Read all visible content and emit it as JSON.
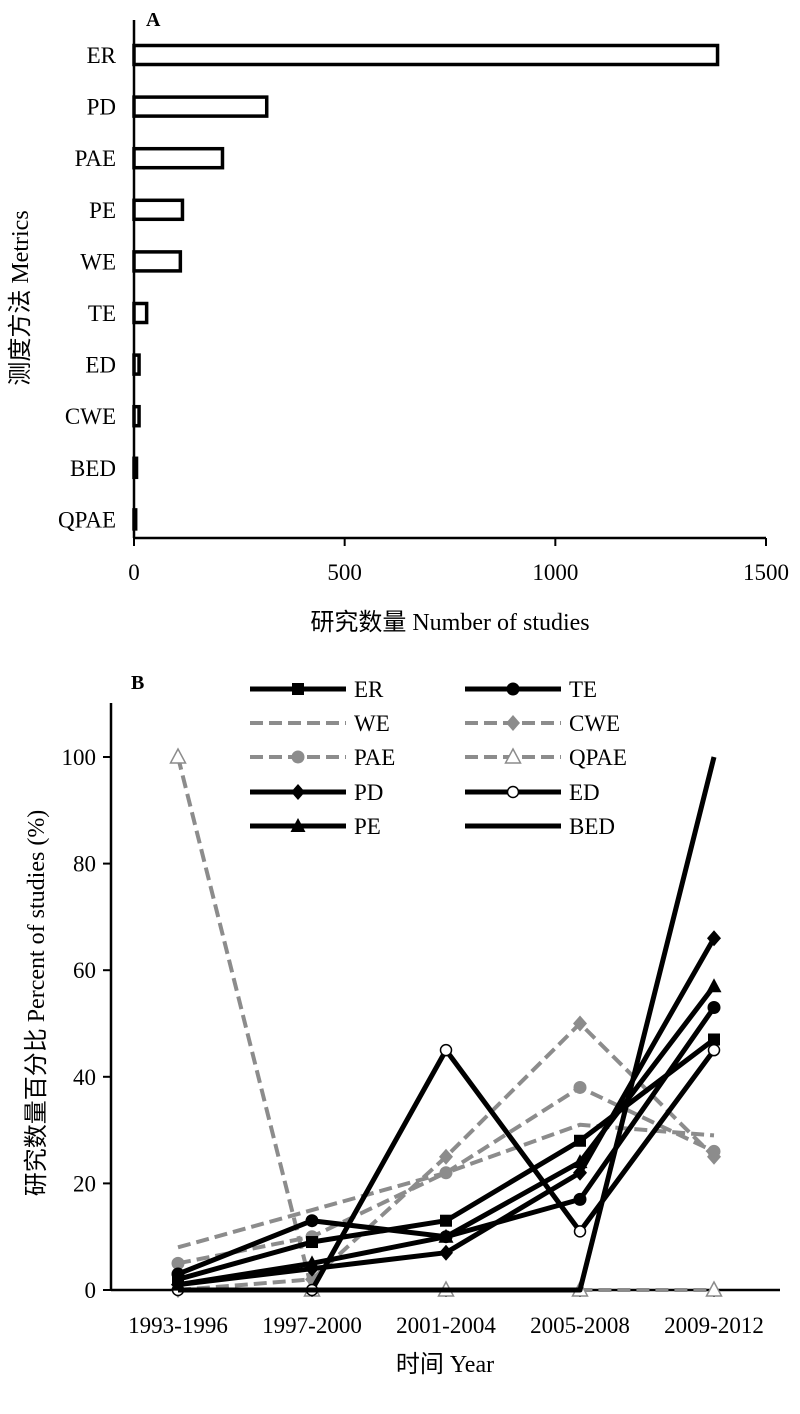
{
  "chart_data": [
    {
      "type": "bar",
      "orientation": "horizontal",
      "panel_label": "A",
      "categories": [
        "ER",
        "PD",
        "PAE",
        "PE",
        "WE",
        "TE",
        "ED",
        "CWE",
        "BED",
        "QPAE"
      ],
      "values": [
        1385,
        315,
        210,
        115,
        110,
        30,
        12,
        12,
        6,
        4
      ],
      "xlabel": "研究数量  Number of studies",
      "ylabel": "测度方法  Metrics",
      "xlim": [
        0,
        1500
      ],
      "xticks": [
        "0",
        "500",
        "1000",
        "1500"
      ],
      "grid": false
    },
    {
      "type": "line",
      "panel_label": "B",
      "categories": [
        "1993-1996",
        "1997-2000",
        "2001-2004",
        "2005-2008",
        "2009-2012"
      ],
      "xlabel": "时间  Year",
      "ylabel": "研究数量百分比  Percent of studies (%)",
      "ylim": [
        0,
        110
      ],
      "yticks": [
        "0",
        "20",
        "40",
        "60",
        "80",
        "100"
      ],
      "legend_position": "top",
      "grid": false,
      "series": [
        {
          "name": "ER",
          "values": [
            2,
            9,
            13,
            28,
            47
          ],
          "color": "#000000",
          "dash": false,
          "marker": "square"
        },
        {
          "name": "TE",
          "values": [
            3,
            13,
            10,
            17,
            53
          ],
          "color": "#000000",
          "dash": false,
          "marker": "circle"
        },
        {
          "name": "WE",
          "values": [
            8,
            15,
            22,
            31,
            29
          ],
          "color": "#8c8c8c",
          "dash": true,
          "marker": "none"
        },
        {
          "name": "CWE",
          "values": [
            0,
            2,
            25,
            50,
            25
          ],
          "color": "#8c8c8c",
          "dash": true,
          "marker": "diamond"
        },
        {
          "name": "PAE",
          "values": [
            5,
            10,
            22,
            38,
            26
          ],
          "color": "#8c8c8c",
          "dash": true,
          "marker": "circle"
        },
        {
          "name": "QPAE",
          "values": [
            100,
            0,
            0,
            0,
            0
          ],
          "color": "#8c8c8c",
          "dash": true,
          "marker": "open-triangle"
        },
        {
          "name": "PD",
          "values": [
            1,
            4,
            7,
            22,
            66
          ],
          "color": "#000000",
          "dash": false,
          "marker": "diamond"
        },
        {
          "name": "ED",
          "values": [
            0,
            0,
            45,
            11,
            45
          ],
          "color": "#000000",
          "dash": false,
          "marker": "open-circle"
        },
        {
          "name": "PE",
          "values": [
            1,
            5,
            10,
            24,
            57
          ],
          "color": "#000000",
          "dash": false,
          "marker": "triangle"
        },
        {
          "name": "BED",
          "values": [
            0,
            0,
            0,
            0,
            100
          ],
          "color": "#000000",
          "dash": false,
          "marker": "none"
        }
      ]
    }
  ]
}
